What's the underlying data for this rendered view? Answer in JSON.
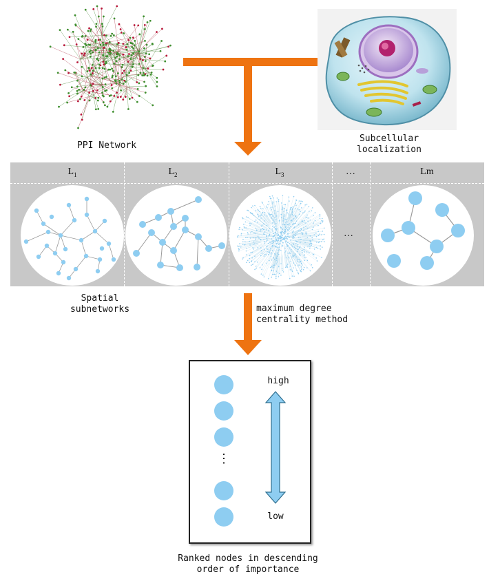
{
  "labels": {
    "ppi_network": "PPI Network",
    "subcellular_line1": "Subcellular",
    "subcellular_line2": "localization",
    "spatial_line1": "Spatial",
    "spatial_line2": "subnetworks",
    "method_line1": "maximum degree",
    "method_line2": "centrality method",
    "ranked_line1": "Ranked nodes in descending",
    "ranked_line2": "order of importance",
    "high": "high",
    "low": "low",
    "vdots": "⋮",
    "ellipsis": "…"
  },
  "layers": [
    {
      "name": "L",
      "sub": "1"
    },
    {
      "name": "L",
      "sub": "2"
    },
    {
      "name": "L",
      "sub": "3"
    },
    {
      "name": "…",
      "sub": ""
    },
    {
      "name": "Lm",
      "sub": ""
    }
  ],
  "colors": {
    "arrow": "#ee7311",
    "node": "#8ecdf1",
    "band": "#c8c8c8",
    "ppi_green": "#3f8f2f",
    "ppi_red": "#b8183a"
  }
}
